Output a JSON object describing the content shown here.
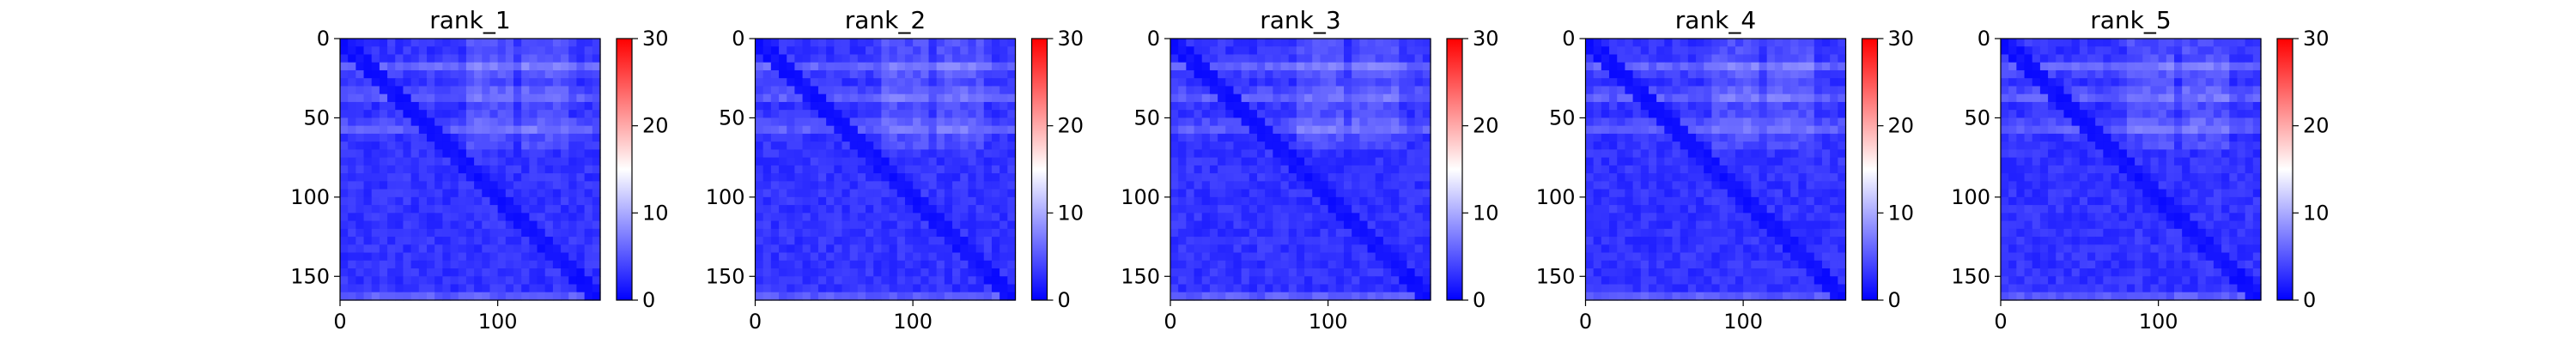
{
  "chart_data": [
    {
      "type": "heatmap",
      "title": "rank_1",
      "xlim": [
        0,
        165
      ],
      "ylim": [
        165,
        0
      ],
      "xticks": [
        0,
        100
      ],
      "yticks": [
        0,
        50,
        100,
        150
      ],
      "colorbar": {
        "min": 0,
        "max": 30,
        "ticks": [
          0,
          10,
          20,
          30
        ],
        "colormap": "bwr"
      },
      "pattern": {
        "diagonal_value": 1,
        "background_value": 3,
        "bright_bands_y": [
          18,
          36,
          56,
          164
        ],
        "bright_regions_x": [
          [
            80,
            110
          ],
          [
            115,
            145
          ]
        ]
      }
    },
    {
      "type": "heatmap",
      "title": "rank_2",
      "xlim": [
        0,
        165
      ],
      "ylim": [
        165,
        0
      ],
      "xticks": [
        0,
        100
      ],
      "yticks": [
        0,
        50,
        100,
        150
      ],
      "colorbar": {
        "min": 0,
        "max": 30,
        "ticks": [
          0,
          10,
          20,
          30
        ],
        "colormap": "bwr"
      },
      "pattern": {
        "diagonal_value": 1,
        "background_value": 3,
        "bright_bands_y": [
          18,
          36,
          56,
          164
        ],
        "bright_regions_x": [
          [
            80,
            110
          ],
          [
            115,
            145
          ]
        ]
      }
    },
    {
      "type": "heatmap",
      "title": "rank_3",
      "xlim": [
        0,
        165
      ],
      "ylim": [
        165,
        0
      ],
      "xticks": [
        0,
        100
      ],
      "yticks": [
        0,
        50,
        100,
        150
      ],
      "colorbar": {
        "min": 0,
        "max": 30,
        "ticks": [
          0,
          10,
          20,
          30
        ],
        "colormap": "bwr"
      },
      "pattern": {
        "diagonal_value": 1,
        "background_value": 3,
        "bright_bands_y": [
          18,
          36,
          56,
          164
        ],
        "bright_regions_x": [
          [
            80,
            110
          ],
          [
            115,
            145
          ]
        ]
      }
    },
    {
      "type": "heatmap",
      "title": "rank_4",
      "xlim": [
        0,
        165
      ],
      "ylim": [
        165,
        0
      ],
      "xticks": [
        0,
        100
      ],
      "yticks": [
        0,
        50,
        100,
        150
      ],
      "colorbar": {
        "min": 0,
        "max": 30,
        "ticks": [
          0,
          10,
          20,
          30
        ],
        "colormap": "bwr"
      },
      "pattern": {
        "diagonal_value": 1,
        "background_value": 3,
        "bright_bands_y": [
          18,
          36,
          56,
          164
        ],
        "bright_regions_x": [
          [
            80,
            110
          ],
          [
            115,
            145
          ]
        ]
      }
    },
    {
      "type": "heatmap",
      "title": "rank_5",
      "xlim": [
        0,
        165
      ],
      "ylim": [
        165,
        0
      ],
      "xticks": [
        0,
        100
      ],
      "yticks": [
        0,
        50,
        100,
        150
      ],
      "colorbar": {
        "min": 0,
        "max": 30,
        "ticks": [
          0,
          10,
          20,
          30
        ],
        "colormap": "bwr"
      },
      "pattern": {
        "diagonal_value": 1,
        "background_value": 3,
        "bright_bands_y": [
          18,
          36,
          56,
          164
        ],
        "bright_regions_x": [
          [
            80,
            110
          ],
          [
            115,
            145
          ]
        ]
      }
    }
  ]
}
